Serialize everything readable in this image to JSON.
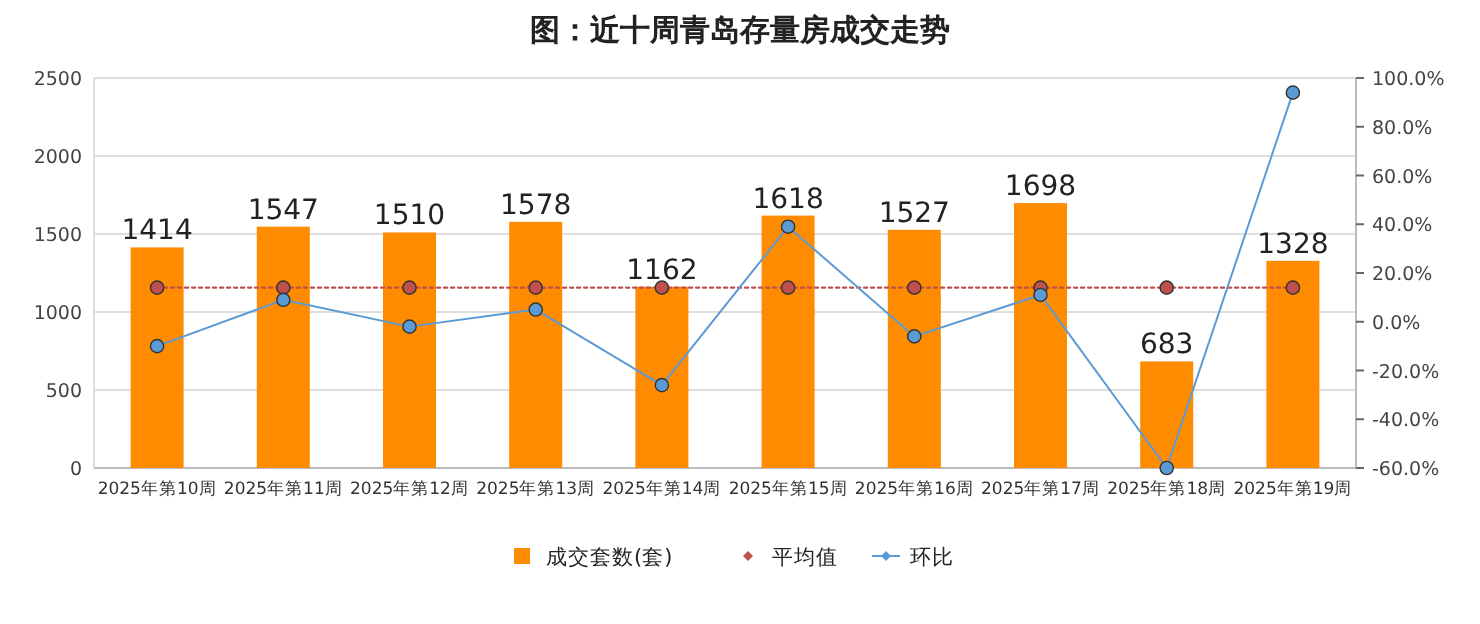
{
  "chart_data": {
    "type": "bar",
    "title": "图：近十周青岛存量房成交走势",
    "categories": [
      "2025年第10周",
      "2025年第11周",
      "2025年第12周",
      "2025年第13周",
      "2025年第14周",
      "2025年第15周",
      "2025年第16周",
      "2025年第17周",
      "2025年第18周",
      "2025年第19周"
    ],
    "series": [
      {
        "name": "成交套数(套)",
        "color": "#ff8c00",
        "values": [
          1414,
          1547,
          1510,
          1578,
          1162,
          1618,
          1527,
          1698,
          683,
          1328
        ],
        "value_labels": [
          "1414",
          "1547",
          "1510",
          "1578",
          "1162",
          "1618",
          "1527",
          "1698",
          "683",
          "1328"
        ]
      },
      {
        "name": "平均值",
        "type": "line",
        "axis": "y2",
        "color": "#c0504d",
        "marker": "circle",
        "line_style": "dotted",
        "values": [
          14,
          14,
          14,
          14,
          14,
          14,
          14,
          14,
          14,
          14
        ]
      },
      {
        "name": "环比",
        "type": "line",
        "axis": "y2",
        "color": "#5b9bd5",
        "marker": "circle",
        "line_style": "solid",
        "values": [
          -10,
          9,
          -2,
          5,
          -26,
          39,
          -6,
          11,
          -60,
          94
        ]
      }
    ],
    "ylim": [
      0,
      2500
    ],
    "yticks": [
      0,
      500,
      1000,
      1500,
      2000,
      2500
    ],
    "y2lim": [
      -60,
      100
    ],
    "y2ticks": [
      {
        "value": 100,
        "label": "100.0%"
      },
      {
        "value": 80,
        "label": "80.0%"
      },
      {
        "value": 60,
        "label": "60.0%"
      },
      {
        "value": 40,
        "label": "40.0%"
      },
      {
        "value": 20,
        "label": "20.0%"
      },
      {
        "value": 0,
        "label": "0.0%"
      },
      {
        "value": -20,
        "label": "-20.0%"
      },
      {
        "value": -40,
        "label": "-40.0%"
      },
      {
        "value": -60,
        "label": "-60.0%"
      }
    ],
    "grid": "y",
    "legend": "bottom"
  }
}
